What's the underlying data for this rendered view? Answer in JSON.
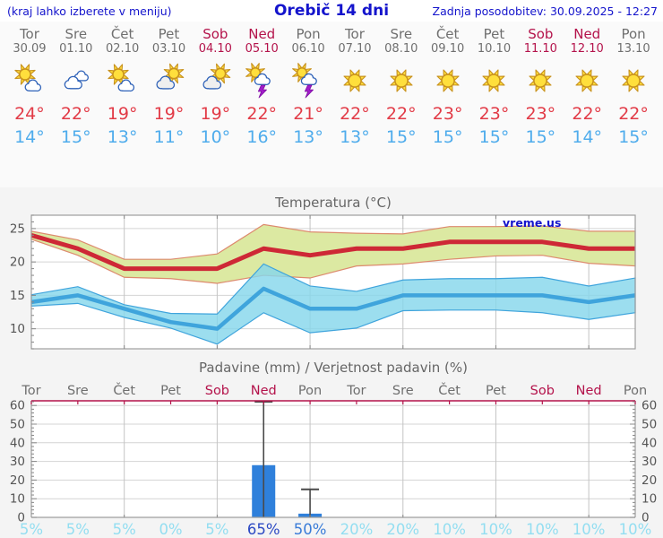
{
  "header": {
    "left_note": "(kraj lahko izberete v meniju)",
    "title": "Orebič 14 dni",
    "last_update": "Zadnja posodobitev: 30.09.2025 - 12:27"
  },
  "watermark": "vreme.us",
  "colors": {
    "header_blue": "#1414CC",
    "day_gray": "#6F6F6F",
    "weekend_crimson": "#B4134B",
    "temp_max_red": "#E23B47",
    "temp_min_blue": "#4FACEC",
    "grid": "#C9C9C9",
    "frame": "#9E9E9E",
    "tick_text": "#555555",
    "title_gray": "#666666",
    "bar_blue": "#2F80DB",
    "whisker": "#4A4A4A"
  },
  "days": [
    {
      "name": "Tor",
      "date": "30.09",
      "weekend": false,
      "icon": "sun-cloud",
      "max_label": "24°",
      "min_label": "14°"
    },
    {
      "name": "Sre",
      "date": "01.10",
      "weekend": false,
      "icon": "cloudy",
      "max_label": "22°",
      "min_label": "15°"
    },
    {
      "name": "Čet",
      "date": "02.10",
      "weekend": false,
      "icon": "sun-cloud",
      "max_label": "19°",
      "min_label": "13°"
    },
    {
      "name": "Pet",
      "date": "03.10",
      "weekend": false,
      "icon": "cloud-sun",
      "max_label": "19°",
      "min_label": "11°"
    },
    {
      "name": "Sob",
      "date": "04.10",
      "weekend": true,
      "icon": "cloud-sun",
      "max_label": "19°",
      "min_label": "10°"
    },
    {
      "name": "Ned",
      "date": "05.10",
      "weekend": true,
      "icon": "thunder",
      "max_label": "22°",
      "min_label": "16°"
    },
    {
      "name": "Pon",
      "date": "06.10",
      "weekend": false,
      "icon": "thunder",
      "max_label": "21°",
      "min_label": "13°"
    },
    {
      "name": "Tor",
      "date": "07.10",
      "weekend": false,
      "icon": "sunny",
      "max_label": "22°",
      "min_label": "13°"
    },
    {
      "name": "Sre",
      "date": "08.10",
      "weekend": false,
      "icon": "sunny",
      "max_label": "22°",
      "min_label": "15°"
    },
    {
      "name": "Čet",
      "date": "09.10",
      "weekend": false,
      "icon": "sunny",
      "max_label": "23°",
      "min_label": "15°"
    },
    {
      "name": "Pet",
      "date": "10.10",
      "weekend": false,
      "icon": "sunny",
      "max_label": "23°",
      "min_label": "15°"
    },
    {
      "name": "Sob",
      "date": "11.10",
      "weekend": true,
      "icon": "sunny",
      "max_label": "23°",
      "min_label": "15°"
    },
    {
      "name": "Ned",
      "date": "12.10",
      "weekend": true,
      "icon": "sunny",
      "max_label": "22°",
      "min_label": "14°"
    },
    {
      "name": "Pon",
      "date": "13.10",
      "weekend": false,
      "icon": "sunny",
      "max_label": "22°",
      "min_label": "15°"
    }
  ],
  "chart_data": [
    {
      "type": "line",
      "title": "Temperatura (°C)",
      "categories": [
        "Tor",
        "Sre",
        "Čet",
        "Pet",
        "Sob",
        "Ned",
        "Pon",
        "Tor",
        "Sre",
        "Čet",
        "Pet",
        "Sob",
        "Ned",
        "Pon"
      ],
      "ylim": [
        7,
        27
      ],
      "yticks": [
        10,
        15,
        20,
        25
      ],
      "grid_x_indices": [
        2,
        4,
        6,
        8,
        10,
        12
      ],
      "legend_position": "none",
      "grid": true,
      "series": [
        {
          "name": "max-temperature",
          "color": "#CE2836",
          "line_width": 5,
          "values": [
            24,
            22,
            19,
            19,
            19,
            22,
            21,
            22,
            22,
            23,
            23,
            23,
            22,
            22
          ],
          "band_upper": [
            24.6,
            23.3,
            20.4,
            20.4,
            21.2,
            25.6,
            24.5,
            24.3,
            24.2,
            25.3,
            25.3,
            25.4,
            24.6,
            24.6
          ],
          "band_lower": [
            23.4,
            21.0,
            17.7,
            17.5,
            16.8,
            18.0,
            17.6,
            19.4,
            19.7,
            20.4,
            20.9,
            21.0,
            19.8,
            19.4
          ],
          "band_fill": "#DCE9A2",
          "band_edge": "#DD8A6E",
          "band_opacity": 1
        },
        {
          "name": "min-temperature",
          "color": "#3FA4DC",
          "line_width": 4.5,
          "values": [
            14,
            15,
            13,
            11,
            10,
            16,
            13,
            13,
            15,
            15,
            15,
            15,
            14,
            15
          ],
          "band_upper": [
            15.1,
            16.3,
            13.6,
            12.3,
            12.2,
            19.7,
            16.4,
            15.6,
            17.3,
            17.5,
            17.5,
            17.7,
            16.4,
            17.6
          ],
          "band_lower": [
            13.4,
            13.8,
            11.7,
            10.1,
            7.7,
            12.4,
            9.4,
            10.1,
            12.7,
            12.8,
            12.8,
            12.4,
            11.4,
            12.4
          ],
          "band_fill": "#86D7EC",
          "band_edge": "#3FA4DC",
          "band_opacity": 0.82
        }
      ]
    },
    {
      "type": "bar",
      "title": "Padavine (mm) / Verjetnost padavin (%)",
      "categories": [
        "Tor",
        "Sre",
        "Čet",
        "Pet",
        "Sob",
        "Ned",
        "Pon",
        "Tor",
        "Sre",
        "Čet",
        "Pet",
        "Sob",
        "Ned",
        "Pon"
      ],
      "weekend_flags": [
        false,
        false,
        false,
        false,
        true,
        true,
        false,
        false,
        false,
        false,
        false,
        true,
        true,
        false
      ],
      "values": [
        0,
        0,
        0,
        0,
        0,
        28,
        2,
        0,
        0,
        0,
        0,
        0,
        0,
        0
      ],
      "whiskers": [
        null,
        null,
        null,
        null,
        null,
        62,
        15,
        null,
        null,
        null,
        null,
        null,
        null,
        null
      ],
      "probabilities": [
        5,
        5,
        5,
        0,
        5,
        65,
        50,
        20,
        20,
        10,
        10,
        10,
        10,
        10
      ],
      "probability_labels": [
        "5%",
        "5%",
        "5%",
        "0%",
        "5%",
        "65%",
        "50%",
        "20%",
        "20%",
        "10%",
        "10%",
        "10%",
        "10%",
        "10%"
      ],
      "prob_colors": {
        "low": "#93DEF1",
        "mid": "#3A7CD8",
        "high": "#2B49C3"
      },
      "ylim": [
        0,
        62.5
      ],
      "yticks": [
        0,
        10,
        20,
        30,
        40,
        50,
        60
      ],
      "top_axis_color": "#B4134B",
      "grid_x_indices": [
        2,
        4,
        6,
        8,
        10,
        12
      ],
      "grid": true
    }
  ]
}
